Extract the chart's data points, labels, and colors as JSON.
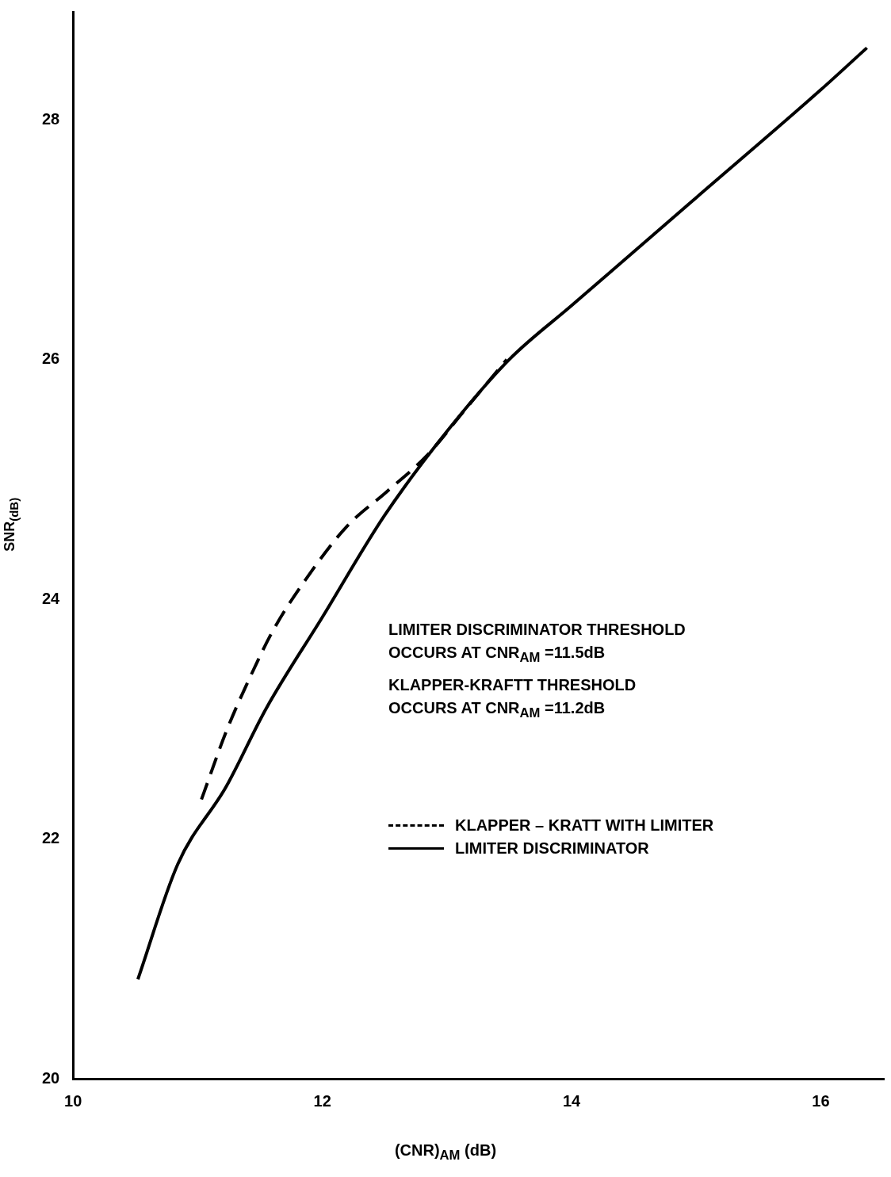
{
  "chart_data": {
    "type": "line",
    "xlabel": "(CNR)$_{AM}$ (dB)",
    "ylabel": "SNR$_{(dB)}$",
    "xlim": [
      10,
      16.5
    ],
    "xticks": [
      {
        "value": 10,
        "label": "10"
      },
      12,
      14,
      16
    ],
    "ylim": [
      20,
      28.9
    ],
    "yticks": [
      20,
      22,
      24,
      26,
      28
    ],
    "grid": false,
    "legend": "right",
    "marker": "none",
    "annotations": [
      "LIMITER DISCRIMINATOR THRESHOLD",
      "OCCURS AT CNR$_{AM}$ =11.5dB",
      "KLAPPER-KRAFTT THRESHOLD",
      "OCCURS AT CNR$_{AM}$ =11.2dB"
    ],
    "series": [
      {
        "name": "KLAPPER – KRATT WITH LIMITER",
        "color": "#000000",
        "line_style": "dashed",
        "x": [
          11.03,
          11.23,
          11.42,
          11.61,
          11.87,
          12.19,
          12.52,
          12.84,
          13.16,
          13.48
        ],
        "values": [
          22.33,
          22.9,
          23.35,
          23.75,
          24.17,
          24.6,
          24.9,
          25.2,
          25.6,
          26.0
        ]
      },
      {
        "name": "LIMITER DISCRIMINATOR",
        "color": "#000000",
        "line_style": "solid",
        "x": [
          10.52,
          10.84,
          11.23,
          11.55,
          12.0,
          12.5,
          13.0,
          13.5,
          14.0,
          15.0,
          16.0,
          16.37
        ],
        "values": [
          20.83,
          21.79,
          22.44,
          23.09,
          23.85,
          24.7,
          25.4,
          26.0,
          26.45,
          27.35,
          28.25,
          28.6
        ]
      }
    ]
  }
}
